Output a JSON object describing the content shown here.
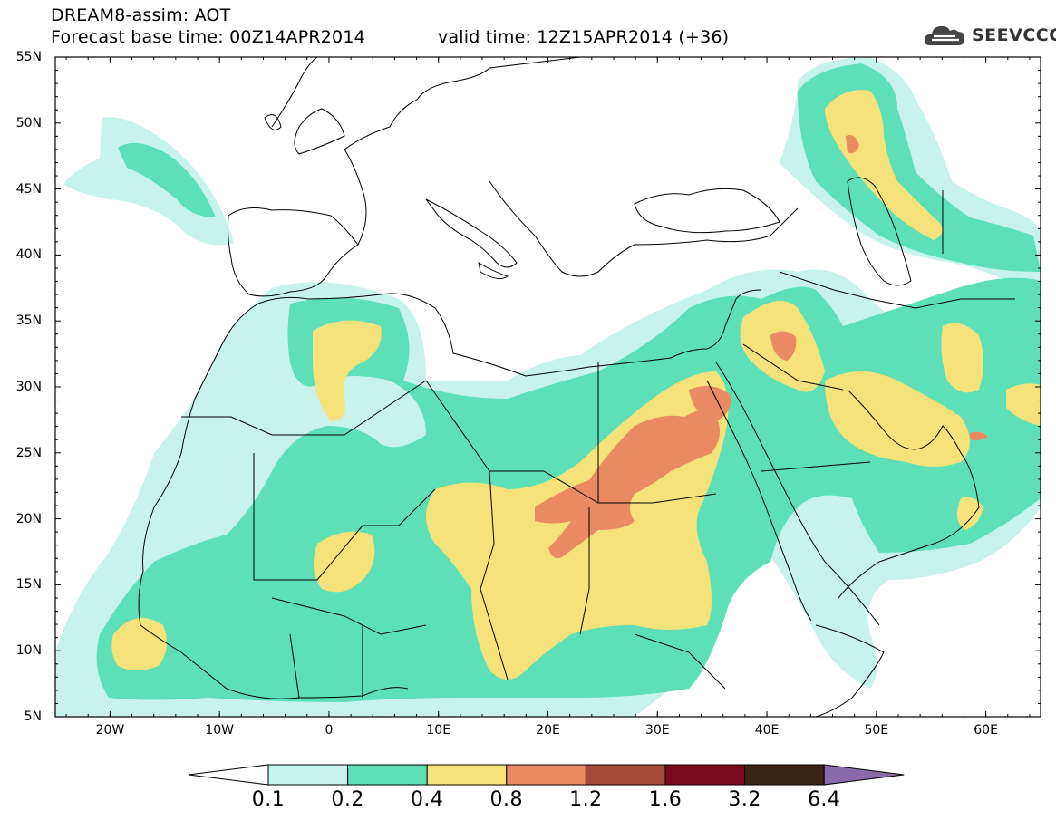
{
  "header": {
    "line1": "DREAM8-assim: AOT",
    "line2": "Forecast base time: 00Z14APR2014",
    "line3": "valid time: 12Z15APR2014 (+36)"
  },
  "brand": {
    "name": "SEEVCCC",
    "icon": "cloud-logo-icon"
  },
  "map": {
    "lat_labels": [
      "55N",
      "50N",
      "45N",
      "40N",
      "35N",
      "30N",
      "25N",
      "20N",
      "15N",
      "10N",
      "5N"
    ],
    "lon_labels": [
      "20W",
      "10W",
      "0",
      "10E",
      "20E",
      "30E",
      "40E",
      "50E",
      "60E"
    ],
    "lat_range": [
      5,
      55
    ],
    "lon_range": [
      -25,
      65
    ]
  },
  "colorbar": {
    "labels": [
      "0.1",
      "0.2",
      "0.4",
      "0.8",
      "1.2",
      "1.6",
      "3.2",
      "6.4"
    ],
    "colors": [
      "#c8f2ec",
      "#5de0b8",
      "#f5e27a",
      "#e98a62",
      "#a84a3b",
      "#7a0a1e",
      "#3b2413",
      "#8a6aaa"
    ],
    "under_color": "#ffffff"
  }
}
